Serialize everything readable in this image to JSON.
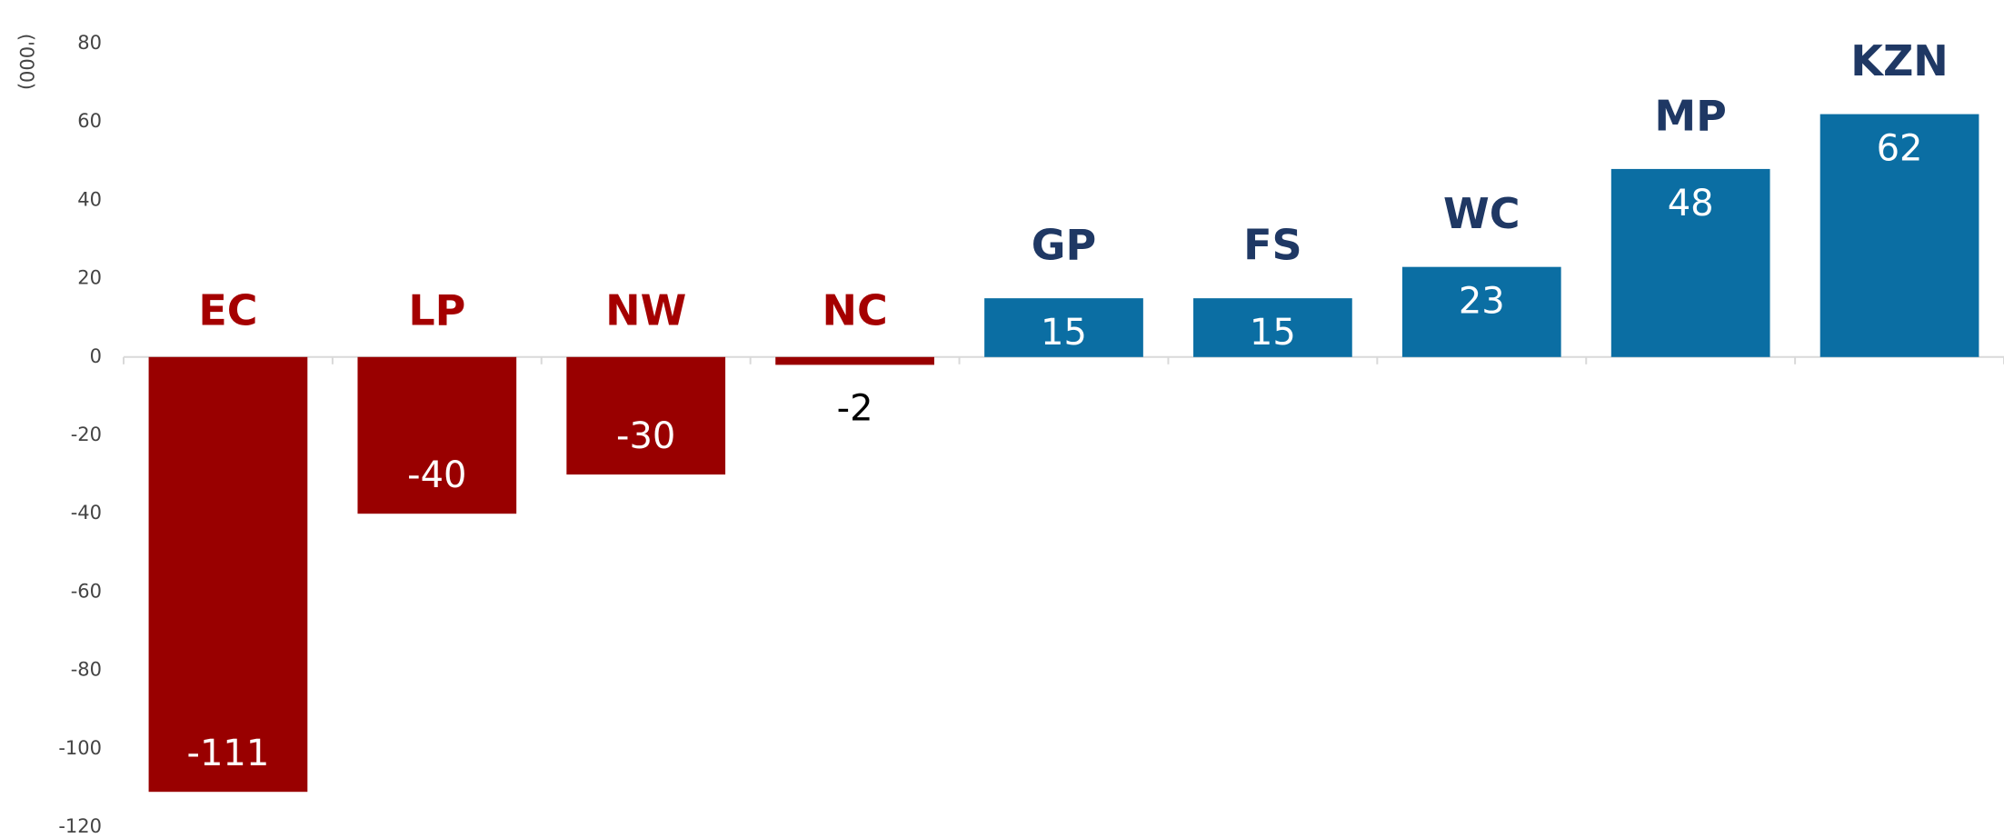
{
  "chart_data": {
    "type": "bar",
    "y_label": "('000)",
    "categories": [
      "EC",
      "LP",
      "NW",
      "NC",
      "GP",
      "FS",
      "WC",
      "MP",
      "KZN"
    ],
    "values": [
      -111,
      -40,
      -30,
      -2,
      15,
      15,
      23,
      48,
      62
    ],
    "positive_color": "#0b6ea3",
    "negative_color": "#990000",
    "positive_label_color": "#1f3864",
    "negative_label_color": "#a50000",
    "ylim": [
      -120,
      80
    ],
    "yticks": [
      -120,
      -100,
      -80,
      -60,
      -40,
      -20,
      0,
      20,
      40,
      60,
      80
    ],
    "grid": false
  }
}
